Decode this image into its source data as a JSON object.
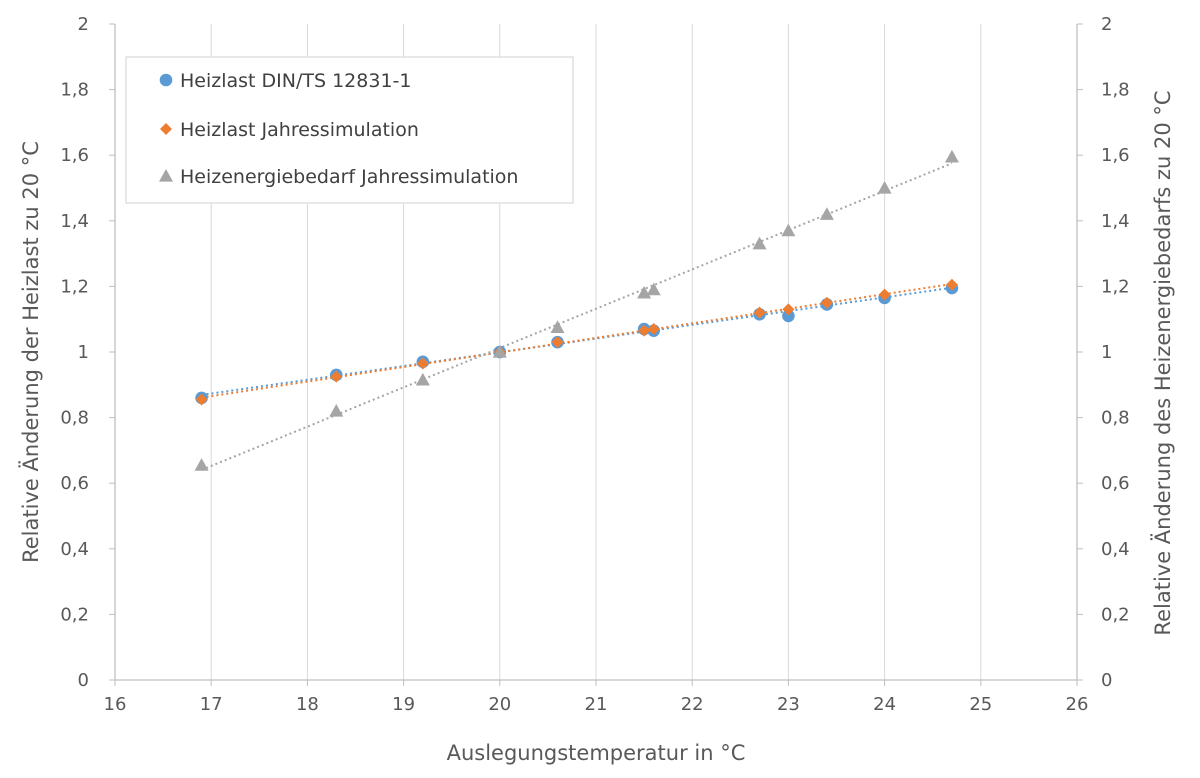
{
  "chart_data": {
    "type": "scatter",
    "title": "",
    "xlabel": "Auslegungstemperatur  in °C",
    "ylabel": "Relative Änderung der Heizlast zu 20 °C",
    "y2label": "Relative Änderung des Heizenergiebedarfs zu 20 °C",
    "xlim": [
      16,
      26
    ],
    "ylim": [
      0,
      2
    ],
    "y2lim": [
      0,
      2
    ],
    "x_ticks": [
      "16",
      "17",
      "18",
      "19",
      "20",
      "21",
      "22",
      "23",
      "24",
      "25",
      "26"
    ],
    "y_ticks": [
      "0",
      "0,2",
      "0,4",
      "0,6",
      "0,8",
      "1",
      "1,2",
      "1,4",
      "1,6",
      "1,8",
      "2"
    ],
    "y2_ticks": [
      "0",
      "0,2",
      "0,4",
      "0,6",
      "0,8",
      "1",
      "1,2",
      "1,4",
      "1,6",
      "1,8",
      "2"
    ],
    "grid": "vertical",
    "legend_position": "top-left",
    "trendlines": "linear, dotted",
    "series": [
      {
        "name": "Heizlast DIN/TS 12831-1",
        "marker": "circle",
        "color": "#5B9BD5",
        "axis": "left",
        "x": [
          16.9,
          18.3,
          19.2,
          20.0,
          20.6,
          21.5,
          21.6,
          22.7,
          23.0,
          23.4,
          24.0,
          24.7
        ],
        "y": [
          0.86,
          0.93,
          0.97,
          1.0,
          1.03,
          1.07,
          1.065,
          1.115,
          1.11,
          1.145,
          1.165,
          1.195
        ]
      },
      {
        "name": "Heizlast Jahressimulation",
        "marker": "diamond",
        "color": "#ED7D31",
        "axis": "left",
        "x": [
          16.9,
          18.3,
          19.2,
          20.0,
          20.6,
          21.5,
          21.6,
          22.7,
          23.0,
          23.4,
          24.0,
          24.7
        ],
        "y": [
          0.855,
          0.925,
          0.965,
          1.0,
          1.03,
          1.065,
          1.07,
          1.12,
          1.13,
          1.15,
          1.175,
          1.205
        ]
      },
      {
        "name": "Heizenergiebedarf Jahressimulation",
        "marker": "triangle",
        "color": "#A5A5A5",
        "axis": "right",
        "x": [
          16.9,
          18.3,
          19.2,
          20.0,
          20.6,
          21.5,
          21.6,
          22.7,
          23.0,
          23.4,
          24.0,
          24.7
        ],
        "y": [
          0.655,
          0.82,
          0.915,
          1.0,
          1.075,
          1.18,
          1.19,
          1.33,
          1.37,
          1.42,
          1.5,
          1.595
        ]
      }
    ]
  }
}
